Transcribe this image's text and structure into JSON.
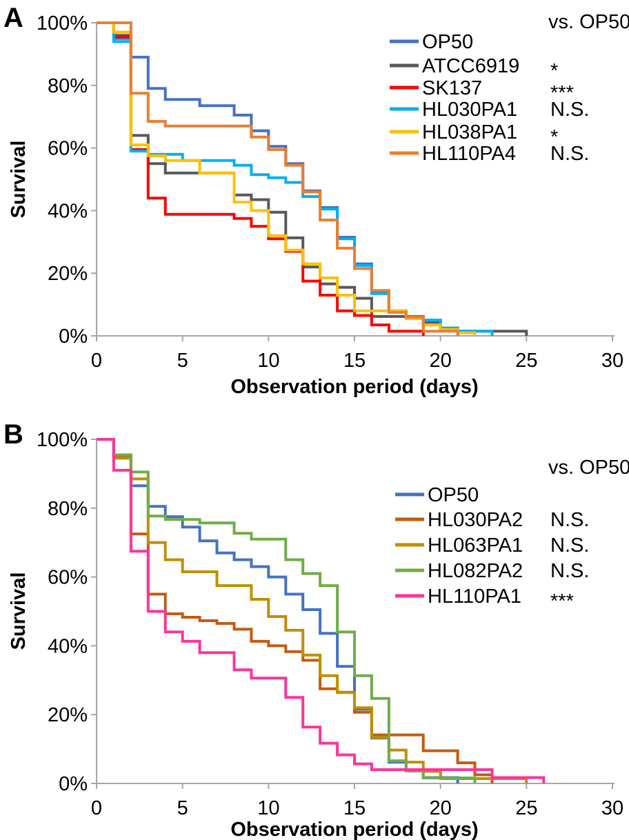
{
  "figure_title": "",
  "chart_data": [
    {
      "type": "line",
      "subtype": "kaplan-meier-step-survival",
      "panel": "A",
      "xlabel": "Observation period (days)",
      "ylabel": "Survival",
      "comparison_note": "vs. OP50",
      "xlim": [
        0,
        30
      ],
      "ylim": [
        0,
        100
      ],
      "x_ticks": [
        0,
        5,
        10,
        15,
        20,
        25,
        30
      ],
      "y_tick_labels": [
        "0%",
        "20%",
        "40%",
        "60%",
        "80%",
        "100%"
      ],
      "grid": "off",
      "legend_position": "top-right",
      "series": [
        {
          "name": "OP50",
          "color": "#4472C4",
          "significance": "",
          "steps": [
            [
              0,
              100
            ],
            [
              1,
              95
            ],
            [
              2,
              89
            ],
            [
              3,
              79
            ],
            [
              4,
              75.5
            ],
            [
              6,
              73.5
            ],
            [
              8,
              70.5
            ],
            [
              9,
              65.5
            ],
            [
              10,
              60.5
            ],
            [
              11,
              55
            ],
            [
              12,
              46.3
            ],
            [
              13,
              41
            ],
            [
              14,
              31.5
            ],
            [
              15,
              23
            ],
            [
              16,
              14
            ],
            [
              17,
              8
            ],
            [
              18,
              6
            ],
            [
              19,
              5
            ],
            [
              20,
              2.5
            ],
            [
              21,
              1.5
            ],
            [
              22,
              0
            ]
          ]
        },
        {
          "name": "ATCC6919",
          "color": "#595959",
          "significance": "*",
          "steps": [
            [
              0,
              100
            ],
            [
              1,
              96
            ],
            [
              2,
              64
            ],
            [
              3,
              55
            ],
            [
              4,
              52
            ],
            [
              8,
              45
            ],
            [
              9,
              43.5
            ],
            [
              10,
              39.5
            ],
            [
              11,
              31.3
            ],
            [
              12,
              22
            ],
            [
              13,
              16.6
            ],
            [
              14,
              15.5
            ],
            [
              15,
              12
            ],
            [
              16,
              6.2
            ],
            [
              19,
              4.2
            ],
            [
              20,
              2
            ],
            [
              21,
              1.5
            ],
            [
              25,
              0
            ]
          ]
        },
        {
          "name": "SK137",
          "color": "#FF0000",
          "significance": "***",
          "steps": [
            [
              0,
              100
            ],
            [
              1,
              95.5
            ],
            [
              2,
              59.5
            ],
            [
              3,
              44
            ],
            [
              4,
              38.8
            ],
            [
              8,
              37.5
            ],
            [
              9,
              35
            ],
            [
              10,
              31
            ],
            [
              11,
              27
            ],
            [
              12,
              17.5
            ],
            [
              13,
              13
            ],
            [
              14,
              8
            ],
            [
              15,
              6.5
            ],
            [
              16,
              3.5
            ],
            [
              17,
              1.5
            ],
            [
              19,
              0
            ]
          ]
        },
        {
          "name": "HL030PA1",
          "color": "#00B0F0",
          "significance": "N.S.",
          "steps": [
            [
              0,
              100
            ],
            [
              1,
              94
            ],
            [
              2,
              59
            ],
            [
              3,
              58
            ],
            [
              5,
              56
            ],
            [
              8,
              54.5
            ],
            [
              9,
              51.5
            ],
            [
              10,
              50.5
            ],
            [
              11,
              49
            ],
            [
              12,
              44.5
            ],
            [
              13,
              40.5
            ],
            [
              14,
              31
            ],
            [
              15,
              22.5
            ],
            [
              16,
              13.5
            ],
            [
              17,
              8
            ],
            [
              18,
              6
            ],
            [
              19,
              5
            ],
            [
              20,
              2.5
            ],
            [
              21,
              1.5
            ],
            [
              23,
              0
            ]
          ]
        },
        {
          "name": "HL038PA1",
          "color": "#FFC000",
          "significance": "*",
          "steps": [
            [
              0,
              100
            ],
            [
              1,
              97
            ],
            [
              2,
              61
            ],
            [
              3,
              57.5
            ],
            [
              4,
              56
            ],
            [
              6,
              52
            ],
            [
              8,
              42.7
            ],
            [
              9,
              40
            ],
            [
              10,
              32
            ],
            [
              11,
              27.4
            ],
            [
              12,
              23
            ],
            [
              13,
              18.5
            ],
            [
              14,
              13
            ],
            [
              15,
              8
            ],
            [
              18,
              5.5
            ],
            [
              19,
              3.5
            ],
            [
              20,
              2
            ],
            [
              21,
              1
            ],
            [
              22,
              0
            ]
          ]
        },
        {
          "name": "HL110PA4",
          "color": "#ED7D31",
          "significance": "N.S.",
          "steps": [
            [
              0,
              100
            ],
            [
              2,
              77.5
            ],
            [
              3,
              68.5
            ],
            [
              4,
              67
            ],
            [
              9,
              63.5
            ],
            [
              10,
              59.5
            ],
            [
              11,
              54.5
            ],
            [
              12,
              46
            ],
            [
              13,
              37
            ],
            [
              14,
              28
            ],
            [
              15,
              21.5
            ],
            [
              16,
              14.5
            ],
            [
              17,
              7.5
            ],
            [
              18,
              6
            ],
            [
              19,
              1.5
            ],
            [
              21,
              0
            ]
          ]
        }
      ]
    },
    {
      "type": "line",
      "subtype": "kaplan-meier-step-survival",
      "panel": "B",
      "xlabel": "Observation period (days)",
      "ylabel": "Survival",
      "comparison_note": "vs. OP50",
      "xlim": [
        0,
        30
      ],
      "ylim": [
        0,
        100
      ],
      "x_ticks": [
        0,
        5,
        10,
        15,
        20,
        25,
        30
      ],
      "y_tick_labels": [
        "0%",
        "20%",
        "40%",
        "60%",
        "80%",
        "100%"
      ],
      "grid": "off",
      "legend_position": "top-right",
      "series": [
        {
          "name": "OP50",
          "color": "#4472C4",
          "significance": "",
          "steps": [
            [
              0,
              100
            ],
            [
              1,
              95
            ],
            [
              2,
              86.5
            ],
            [
              3,
              80.5
            ],
            [
              4,
              77.5
            ],
            [
              5,
              74.5
            ],
            [
              6,
              70.5
            ],
            [
              7,
              67
            ],
            [
              8,
              65
            ],
            [
              9,
              63
            ],
            [
              10,
              60
            ],
            [
              11,
              55
            ],
            [
              12,
              50.5
            ],
            [
              13,
              43.6
            ],
            [
              14,
              34
            ],
            [
              15,
              21.6
            ],
            [
              16,
              13.2
            ],
            [
              17,
              6.2
            ],
            [
              18,
              3.6
            ],
            [
              19,
              1.7
            ],
            [
              21,
              0
            ]
          ]
        },
        {
          "name": "HL030PA2",
          "color": "#C55A11",
          "significance": "N.S.",
          "steps": [
            [
              0,
              100
            ],
            [
              1,
              95
            ],
            [
              2,
              72.5
            ],
            [
              3,
              55
            ],
            [
              4,
              49.3
            ],
            [
              5,
              48.3
            ],
            [
              6,
              47.3
            ],
            [
              7,
              46.5
            ],
            [
              8,
              44.8
            ],
            [
              9,
              41.3
            ],
            [
              10,
              40
            ],
            [
              11,
              38.3
            ],
            [
              12,
              35.8
            ],
            [
              13,
              27.5
            ],
            [
              14,
              26.5
            ],
            [
              15,
              20.7
            ],
            [
              16,
              14.1
            ],
            [
              19,
              9.5
            ],
            [
              21,
              6
            ],
            [
              22,
              2.5
            ],
            [
              23,
              0
            ]
          ]
        },
        {
          "name": "HL063PA1",
          "color": "#BF8F00",
          "significance": "N.S.",
          "steps": [
            [
              0,
              100
            ],
            [
              1,
              94.5
            ],
            [
              2,
              88.5
            ],
            [
              3,
              70
            ],
            [
              4,
              65
            ],
            [
              5,
              61.5
            ],
            [
              7,
              57.5
            ],
            [
              9,
              53.5
            ],
            [
              10,
              48.5
            ],
            [
              11,
              44.5
            ],
            [
              12,
              37.3
            ],
            [
              13,
              31.3
            ],
            [
              14,
              26.4
            ],
            [
              15,
              22
            ],
            [
              16,
              13.4
            ],
            [
              17,
              9.7
            ],
            [
              18,
              6.2
            ],
            [
              19,
              3.5
            ],
            [
              20,
              1.4
            ],
            [
              25,
              0
            ]
          ]
        },
        {
          "name": "HL082PA2",
          "color": "#70AD47",
          "significance": "N.S.",
          "steps": [
            [
              0,
              100
            ],
            [
              1,
              95.5
            ],
            [
              2,
              90.5
            ],
            [
              3,
              77.7
            ],
            [
              4,
              76.7
            ],
            [
              6,
              75.7
            ],
            [
              8,
              72.7
            ],
            [
              9,
              71
            ],
            [
              11,
              65
            ],
            [
              12,
              61
            ],
            [
              13,
              57.5
            ],
            [
              14,
              44
            ],
            [
              15,
              31.3
            ],
            [
              16,
              24.7
            ],
            [
              17,
              6.6
            ],
            [
              18,
              3.6
            ],
            [
              19,
              1.6
            ],
            [
              22,
              0
            ]
          ]
        },
        {
          "name": "HL110PA1",
          "color": "#FF3399",
          "significance": "***",
          "steps": [
            [
              0,
              100
            ],
            [
              1,
              91
            ],
            [
              2,
              67.5
            ],
            [
              3,
              50
            ],
            [
              4,
              44
            ],
            [
              5,
              41.3
            ],
            [
              6,
              38
            ],
            [
              8,
              33
            ],
            [
              9,
              30.6
            ],
            [
              11,
              25
            ],
            [
              12,
              16.4
            ],
            [
              13,
              11.7
            ],
            [
              14,
              8.3
            ],
            [
              15,
              5.7
            ],
            [
              16,
              4
            ],
            [
              23,
              1.7
            ],
            [
              26,
              0
            ]
          ]
        }
      ]
    }
  ]
}
